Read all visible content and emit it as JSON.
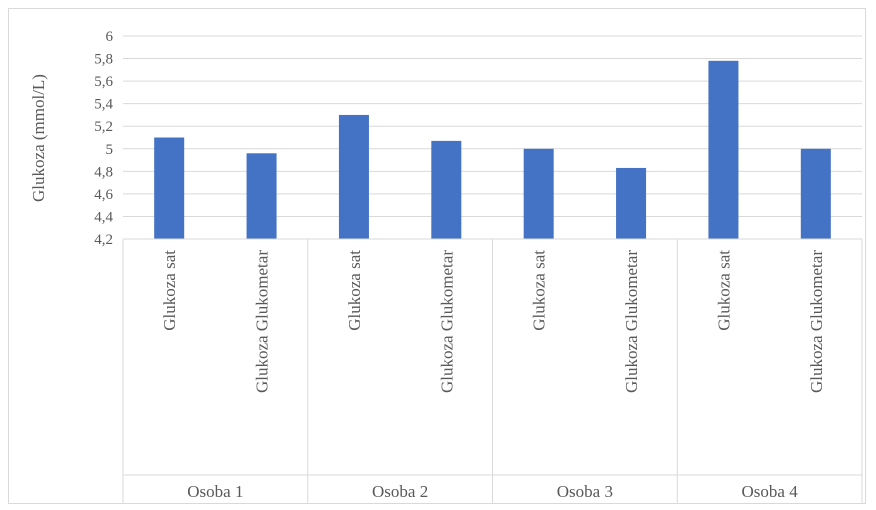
{
  "chart_data": {
    "type": "bar",
    "title": "",
    "ylabel": "Glukoza (mmol/L)",
    "xlabel": "",
    "ylim": [
      4.2,
      6
    ],
    "yticks": [
      "4,2",
      "4,4",
      "4,6",
      "4,8",
      "5",
      "5,2",
      "5,4",
      "5,6",
      "5,8",
      "6"
    ],
    "grid": true,
    "legend": "none",
    "bar_color": "#4472c4",
    "groups": [
      "Osoba 1",
      "Osoba 2",
      "Osoba 3",
      "Osoba 4"
    ],
    "categories": [
      "Glukoza sat",
      "Glukoza Glukometar",
      "Glukoza sat",
      "Glukoza Glukometar",
      "Glukoza sat",
      "Glukoza Glukometar",
      "Glukoza sat",
      "Glukoza Glukometar"
    ],
    "values": [
      5.1,
      4.96,
      5.3,
      5.07,
      5.0,
      4.83,
      5.78,
      5.0
    ]
  }
}
